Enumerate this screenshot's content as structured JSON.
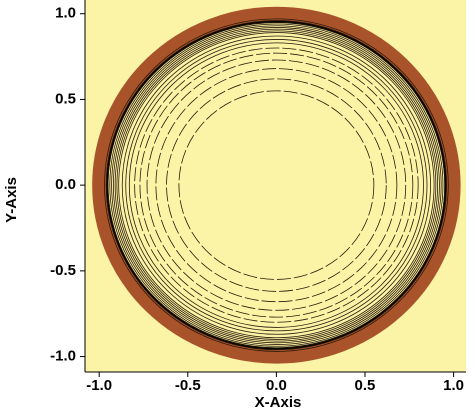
{
  "chart_data": {
    "type": "contour",
    "xlabel": "X-Axis",
    "ylabel": "Y-Axis",
    "xlim": [
      -1.08,
      1.07
    ],
    "ylim": [
      -1.09,
      1.08
    ],
    "xticks": [
      {
        "value": -1.0,
        "label": "-1.0"
      },
      -0.5,
      {
        "value": 0.0,
        "label": "0.0"
      },
      0.5,
      {
        "value": 1.0,
        "label": "1.0"
      }
    ],
    "yticks": [
      {
        "value": -1.0,
        "label": "-1.0"
      },
      -0.5,
      {
        "value": 0.0,
        "label": "0.0"
      },
      0.5,
      {
        "value": 1.0,
        "label": "1.0"
      }
    ],
    "background": "#fbf3a6",
    "boundary": {
      "radius": 1.0,
      "color": "#a9532b"
    },
    "contours": {
      "color": "#2b1a0a",
      "radii": [
        0.55,
        0.62,
        0.68,
        0.73,
        0.77,
        0.8,
        0.83,
        0.85,
        0.87,
        0.89,
        0.9,
        0.91,
        0.92,
        0.93,
        0.94,
        0.95,
        0.96,
        0.97
      ]
    }
  }
}
